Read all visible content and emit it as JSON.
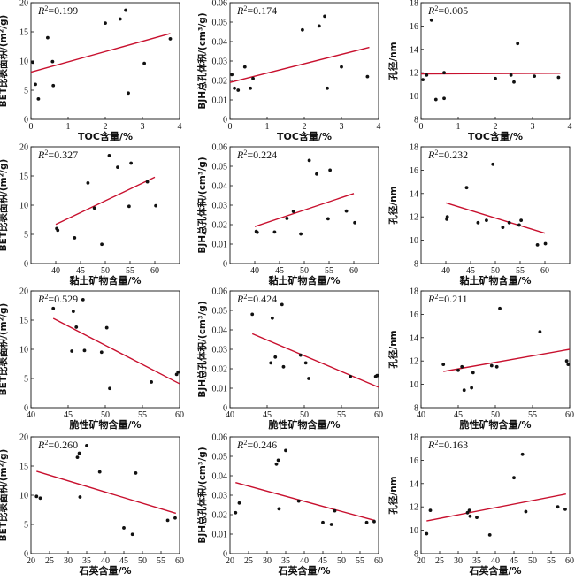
{
  "colors": {
    "points": "#111111",
    "trend": "#c8102e",
    "axis": "#111111"
  },
  "chart_data": [
    {
      "type": "scatter",
      "xlabel": "TOC含量/%",
      "ylabel": "BET比表面积/(m²/g)",
      "r2": "0.199",
      "xlim": [
        0,
        4
      ],
      "ylim": [
        0,
        20
      ],
      "xticks": [
        "0",
        "1",
        "2",
        "3",
        "4"
      ],
      "yticks": [
        "0",
        "5",
        "10",
        "15",
        "20"
      ],
      "points": [
        [
          0.05,
          9.8
        ],
        [
          0.12,
          6
        ],
        [
          0.2,
          3.5
        ],
        [
          0.45,
          14
        ],
        [
          0.58,
          9.9
        ],
        [
          0.6,
          5.8
        ],
        [
          2,
          16.5
        ],
        [
          2.4,
          17.2
        ],
        [
          2.55,
          18.7
        ],
        [
          2.62,
          4.5
        ],
        [
          3.05,
          9.6
        ],
        [
          3.75,
          13.8
        ]
      ],
      "trend": [
        [
          0,
          8.1
        ],
        [
          3.75,
          14.7
        ]
      ]
    },
    {
      "type": "scatter",
      "xlabel": "TOC含量/%",
      "ylabel": "BJH总孔体积/(cm³/g)",
      "r2": "0.174",
      "xlim": [
        0,
        4
      ],
      "ylim": [
        0,
        0.06
      ],
      "xticks": [
        "0",
        "1",
        "2",
        "3",
        "4"
      ],
      "yticks": [
        "0",
        "0.01",
        "0.02",
        "0.03",
        "0.04",
        "0.05",
        "0.06"
      ],
      "points": [
        [
          0.05,
          0.023
        ],
        [
          0.12,
          0.016
        ],
        [
          0.22,
          0.015
        ],
        [
          0.4,
          0.027
        ],
        [
          0.55,
          0.016
        ],
        [
          0.62,
          0.021
        ],
        [
          1.95,
          0.046
        ],
        [
          2.4,
          0.048
        ],
        [
          2.55,
          0.053
        ],
        [
          2.62,
          0.016
        ],
        [
          3,
          0.027
        ],
        [
          3.7,
          0.022
        ]
      ],
      "trend": [
        [
          0,
          0.019
        ],
        [
          3.75,
          0.037
        ]
      ]
    },
    {
      "type": "scatter",
      "xlabel": "TOC含量/%",
      "ylabel": "孔径/nm",
      "r2": "0.005",
      "xlim": [
        0,
        4
      ],
      "ylim": [
        8,
        18
      ],
      "xticks": [
        "0",
        "1",
        "2",
        "3",
        "4"
      ],
      "yticks": [
        "8",
        "10",
        "12",
        "14",
        "16",
        "18"
      ],
      "points": [
        [
          0.05,
          11.4
        ],
        [
          0.15,
          11.8
        ],
        [
          0.28,
          16.5
        ],
        [
          0.4,
          9.7
        ],
        [
          0.62,
          12
        ],
        [
          0.62,
          9.8
        ],
        [
          2,
          11.5
        ],
        [
          2.42,
          11.8
        ],
        [
          2.5,
          11.2
        ],
        [
          2.6,
          14.5
        ],
        [
          3.05,
          11.7
        ],
        [
          3.7,
          11.6
        ]
      ],
      "trend": [
        [
          0,
          11.9
        ],
        [
          3.75,
          11.95
        ]
      ]
    },
    {
      "type": "scatter",
      "xlabel": "黏土矿物含量/%",
      "ylabel": "BET比表面积/(m²/g)",
      "r2": "0.327",
      "xlim": [
        35,
        65
      ],
      "ylim": [
        0,
        20
      ],
      "xticks": [
        "40",
        "45",
        "50",
        "55",
        "60"
      ],
      "yticks": [
        "0",
        "5",
        "10",
        "15",
        "20"
      ],
      "points": [
        [
          40.2,
          6
        ],
        [
          40.4,
          5.7
        ],
        [
          43.8,
          4.4
        ],
        [
          46.5,
          13.8
        ],
        [
          47.8,
          9.5
        ],
        [
          49.3,
          3.3
        ],
        [
          50.8,
          18.5
        ],
        [
          52.5,
          16.5
        ],
        [
          54.8,
          9.8
        ],
        [
          55.2,
          17.2
        ],
        [
          58.5,
          14
        ],
        [
          60.2,
          9.9
        ]
      ],
      "trend": [
        [
          40,
          6.7
        ],
        [
          60,
          14.8
        ]
      ]
    },
    {
      "type": "scatter",
      "xlabel": "黏土矿物含量/%",
      "ylabel": "BJH总孔体积/(cm³/g)",
      "r2": "0.224",
      "xlim": [
        35,
        65
      ],
      "ylim": [
        0,
        0.06
      ],
      "xticks": [
        "40",
        "45",
        "50",
        "55",
        "60"
      ],
      "yticks": [
        "0",
        "0.01",
        "0.02",
        "0.03",
        "0.04",
        "0.05",
        "0.06"
      ],
      "points": [
        [
          40.3,
          0.0165
        ],
        [
          40.5,
          0.016
        ],
        [
          44,
          0.0162
        ],
        [
          46.5,
          0.0232
        ],
        [
          47.8,
          0.0268
        ],
        [
          49.3,
          0.0152
        ],
        [
          51,
          0.053
        ],
        [
          52.5,
          0.046
        ],
        [
          54.8,
          0.023
        ],
        [
          55.2,
          0.048
        ],
        [
          58.5,
          0.027
        ],
        [
          60.2,
          0.021
        ]
      ],
      "trend": [
        [
          40,
          0.019
        ],
        [
          60,
          0.036
        ]
      ]
    },
    {
      "type": "scatter",
      "xlabel": "黏土矿物含量/%",
      "ylabel": "孔径/nm",
      "r2": "0.232",
      "xlim": [
        35,
        65
      ],
      "ylim": [
        8,
        18
      ],
      "xticks": [
        "40",
        "45",
        "50",
        "55",
        "60"
      ],
      "yticks": [
        "8",
        "10",
        "12",
        "14",
        "16",
        "18"
      ],
      "points": [
        [
          40.2,
          11.8
        ],
        [
          40.3,
          12
        ],
        [
          44.2,
          14.5
        ],
        [
          46.5,
          11.5
        ],
        [
          48.2,
          11.7
        ],
        [
          49.5,
          16.5
        ],
        [
          51.5,
          11.1
        ],
        [
          52.8,
          11.5
        ],
        [
          54.8,
          11.3
        ],
        [
          55.2,
          11.7
        ],
        [
          58.5,
          9.6
        ],
        [
          60.1,
          9.7
        ]
      ],
      "trend": [
        [
          40,
          13.2
        ],
        [
          60,
          10.6
        ]
      ]
    },
    {
      "type": "scatter",
      "xlabel": "脆性矿物含量/%",
      "ylabel": "BET比表面积/(m²/g)",
      "r2": "0.529",
      "xlim": [
        40,
        60
      ],
      "ylim": [
        0,
        20
      ],
      "xticks": [
        "40",
        "45",
        "50",
        "55",
        "60"
      ],
      "yticks": [
        "0",
        "5",
        "10",
        "15",
        "20"
      ],
      "points": [
        [
          43,
          17
        ],
        [
          45.5,
          9.7
        ],
        [
          45.7,
          16.5
        ],
        [
          46.1,
          13.8
        ],
        [
          47,
          18.5
        ],
        [
          47.2,
          9.8
        ],
        [
          49.5,
          9.5
        ],
        [
          50.2,
          13.7
        ],
        [
          50.6,
          3.3
        ],
        [
          56.2,
          4.4
        ],
        [
          59.6,
          5.7
        ],
        [
          59.8,
          6.1
        ]
      ],
      "trend": [
        [
          43,
          15.3
        ],
        [
          60,
          4.1
        ]
      ]
    },
    {
      "type": "scatter",
      "xlabel": "脆性矿物含量/%",
      "ylabel": "BJH总孔体积/(cm³/g)",
      "r2": "0.424",
      "xlim": [
        40,
        60
      ],
      "ylim": [
        0,
        0.06
      ],
      "xticks": [
        "40",
        "45",
        "50",
        "55",
        "60"
      ],
      "yticks": [
        "0",
        "0.01",
        "0.02",
        "0.03",
        "0.04",
        "0.05",
        "0.06"
      ],
      "points": [
        [
          43,
          0.048
        ],
        [
          45.5,
          0.023
        ],
        [
          45.7,
          0.046
        ],
        [
          46.1,
          0.026
        ],
        [
          47,
          0.053
        ],
        [
          47.2,
          0.021
        ],
        [
          49.5,
          0.027
        ],
        [
          50.2,
          0.023
        ],
        [
          50.6,
          0.015
        ],
        [
          56.2,
          0.016
        ],
        [
          59.6,
          0.016
        ],
        [
          59.8,
          0.0165
        ]
      ],
      "trend": [
        [
          43,
          0.038
        ],
        [
          60,
          0.0105
        ]
      ]
    },
    {
      "type": "scatter",
      "xlabel": "脆性矿物含量/%",
      "ylabel": "孔径/nm",
      "r2": "0.211",
      "xlim": [
        40,
        60
      ],
      "ylim": [
        8,
        18
      ],
      "xticks": [
        "40",
        "45",
        "50",
        "55",
        "60"
      ],
      "yticks": [
        "8",
        "10",
        "12",
        "14",
        "16",
        "18"
      ],
      "points": [
        [
          43,
          11.7
        ],
        [
          45,
          11.2
        ],
        [
          45.5,
          11.5
        ],
        [
          45.8,
          9.5
        ],
        [
          46.8,
          9.7
        ],
        [
          47,
          11
        ],
        [
          49.5,
          11.6
        ],
        [
          50.2,
          11.5
        ],
        [
          50.6,
          16.5
        ],
        [
          56,
          14.5
        ],
        [
          59.6,
          12
        ],
        [
          59.8,
          11.7
        ]
      ],
      "trend": [
        [
          43,
          11.1
        ],
        [
          60,
          13
        ]
      ]
    },
    {
      "type": "scatter",
      "xlabel": "石英含量/%",
      "ylabel": "BET比表面积/(m²/g)",
      "r2": "0.260",
      "xlim": [
        20,
        60
      ],
      "ylim": [
        0,
        20
      ],
      "xticks": [
        "20",
        "25",
        "30",
        "35",
        "40",
        "45",
        "50",
        "55",
        "60"
      ],
      "yticks": [
        "0",
        "5",
        "10",
        "15",
        "20"
      ],
      "points": [
        [
          21.5,
          9.8
        ],
        [
          22.5,
          9.5
        ],
        [
          32.5,
          16.5
        ],
        [
          33,
          17.2
        ],
        [
          33.2,
          9.7
        ],
        [
          35,
          18.5
        ],
        [
          38.5,
          14
        ],
        [
          45,
          4.4
        ],
        [
          47.3,
          3.3
        ],
        [
          48.2,
          13.8
        ],
        [
          56.8,
          5.7
        ],
        [
          58.8,
          6.1
        ]
      ],
      "trend": [
        [
          21.5,
          14.1
        ],
        [
          59,
          6.9
        ]
      ]
    },
    {
      "type": "scatter",
      "xlabel": "石英含量/%",
      "ylabel": "BJH总孔体积/(cm³/g)",
      "r2": "0.246",
      "xlim": [
        20,
        60
      ],
      "ylim": [
        0,
        0.06
      ],
      "xticks": [
        "20",
        "25",
        "30",
        "35",
        "40",
        "45",
        "50",
        "55",
        "60"
      ],
      "yticks": [
        "0",
        "0.01",
        "0.02",
        "0.03",
        "0.04",
        "0.05",
        "0.06"
      ],
      "points": [
        [
          21.5,
          0.021
        ],
        [
          22.5,
          0.026
        ],
        [
          32.5,
          0.046
        ],
        [
          33,
          0.048
        ],
        [
          33.2,
          0.023
        ],
        [
          35,
          0.053
        ],
        [
          38.5,
          0.027
        ],
        [
          45,
          0.016
        ],
        [
          47.3,
          0.015
        ],
        [
          48.2,
          0.022
        ],
        [
          56.8,
          0.016
        ],
        [
          58.8,
          0.0165
        ]
      ],
      "trend": [
        [
          21.5,
          0.0365
        ],
        [
          59,
          0.017
        ]
      ]
    },
    {
      "type": "scatter",
      "xlabel": "石英含量/%",
      "ylabel": "孔径/nm",
      "r2": "0.163",
      "xlim": [
        20,
        60
      ],
      "ylim": [
        8,
        18
      ],
      "xticks": [
        "20",
        "25",
        "30",
        "35",
        "40",
        "45",
        "50",
        "55",
        "60"
      ],
      "yticks": [
        "8",
        "10",
        "12",
        "14",
        "16",
        "18"
      ],
      "points": [
        [
          21.5,
          9.7
        ],
        [
          22.5,
          11.7
        ],
        [
          32.5,
          11.5
        ],
        [
          33,
          11.7
        ],
        [
          33.2,
          11.2
        ],
        [
          35,
          11.1
        ],
        [
          38.5,
          9.6
        ],
        [
          45,
          14.5
        ],
        [
          47.3,
          16.5
        ],
        [
          48.2,
          11.6
        ],
        [
          56.8,
          12
        ],
        [
          58.8,
          11.8
        ]
      ],
      "trend": [
        [
          21.5,
          10.8
        ],
        [
          59,
          13.1
        ]
      ]
    }
  ]
}
